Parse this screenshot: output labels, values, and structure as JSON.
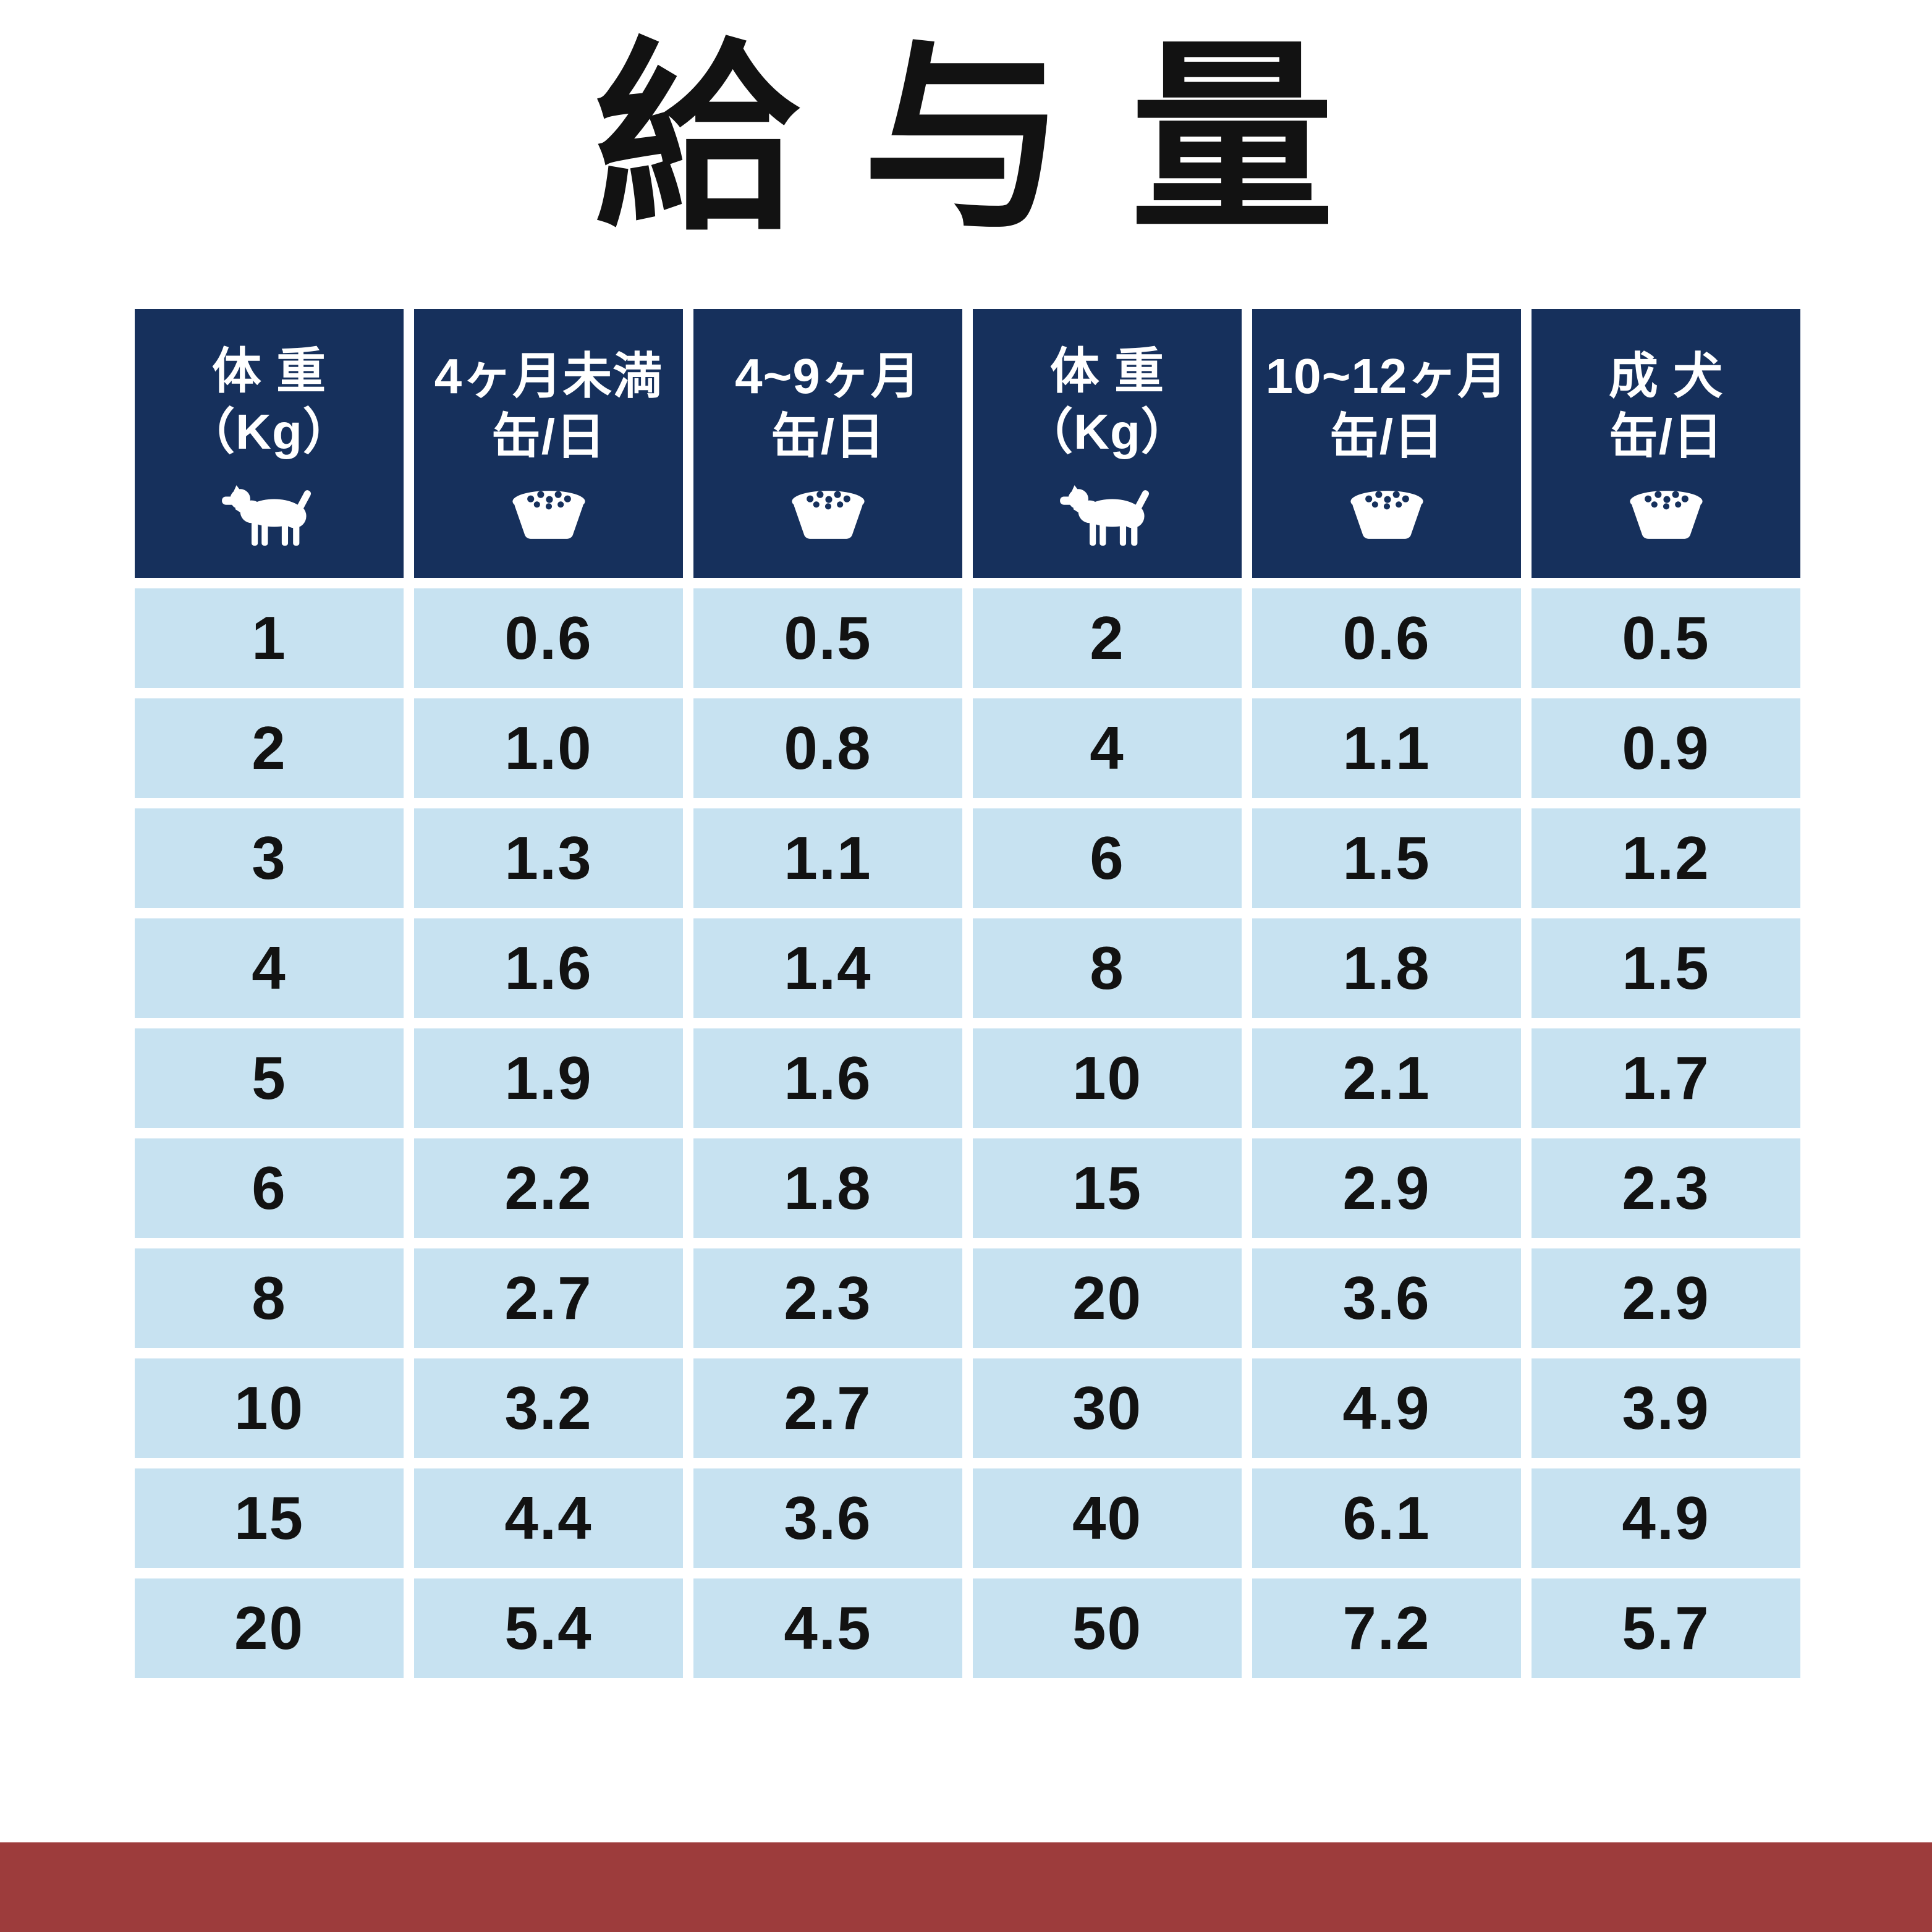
{
  "title": "給 与 量",
  "chart_data": {
    "type": "table",
    "title": "給与量",
    "columns": [
      {
        "header_line1": "体 重",
        "header_line2": "（Kg）",
        "icon": "dog-icon"
      },
      {
        "header_line1": "4ヶ月未満",
        "header_line2": "缶/日",
        "icon": "bowl-icon"
      },
      {
        "header_line1": "4~9ヶ月",
        "header_line2": "缶/日",
        "icon": "bowl-icon"
      },
      {
        "header_line1": "体 重",
        "header_line2": "（Kg）",
        "icon": "dog-icon"
      },
      {
        "header_line1": "10~12ヶ月",
        "header_line2": "缶/日",
        "icon": "bowl-icon"
      },
      {
        "header_line1": "成 犬",
        "header_line2": "缶/日",
        "icon": "bowl-icon"
      }
    ],
    "rows": [
      [
        "1",
        "0.6",
        "0.5",
        "2",
        "0.6",
        "0.5"
      ],
      [
        "2",
        "1.0",
        "0.8",
        "4",
        "1.1",
        "0.9"
      ],
      [
        "3",
        "1.3",
        "1.1",
        "6",
        "1.5",
        "1.2"
      ],
      [
        "4",
        "1.6",
        "1.4",
        "8",
        "1.8",
        "1.5"
      ],
      [
        "5",
        "1.9",
        "1.6",
        "10",
        "2.1",
        "1.7"
      ],
      [
        "6",
        "2.2",
        "1.8",
        "15",
        "2.9",
        "2.3"
      ],
      [
        "8",
        "2.7",
        "2.3",
        "20",
        "3.6",
        "2.9"
      ],
      [
        "10",
        "3.2",
        "2.7",
        "30",
        "4.9",
        "3.9"
      ],
      [
        "15",
        "4.4",
        "3.6",
        "40",
        "6.1",
        "4.9"
      ],
      [
        "20",
        "5.4",
        "4.5",
        "50",
        "7.2",
        "5.7"
      ]
    ]
  },
  "colors": {
    "header_bg": "#16305c",
    "row_bg": "#c7e2f1",
    "band": "#9d3c3c",
    "header_text": "#ffffff",
    "cell_text": "#121212",
    "title_text": "#121212"
  }
}
